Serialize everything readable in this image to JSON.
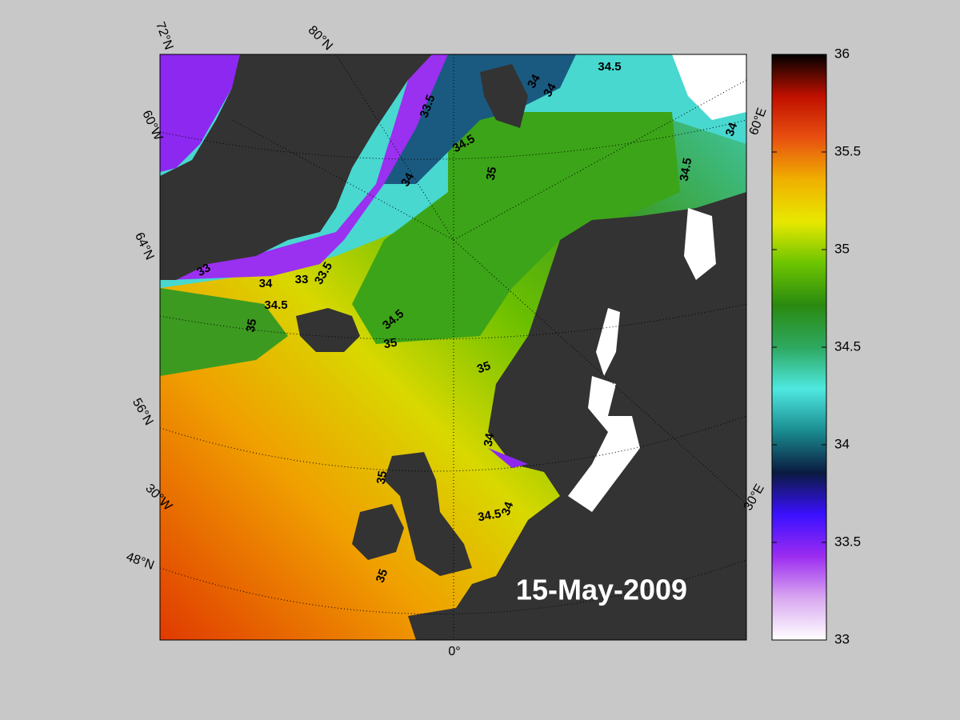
{
  "map": {
    "date_label": "15-May-2009",
    "graticule_labels": [
      "72°N",
      "80°N",
      "60°W",
      "64°N",
      "56°N",
      "30°W",
      "48°N",
      "0°",
      "30°E",
      "60°E"
    ],
    "contour_labels": [
      33.5,
      34,
      34,
      34.5,
      34.5,
      35,
      34,
      34.5,
      34,
      33,
      34,
      33,
      33.5,
      34.5,
      35,
      34.5,
      35,
      35,
      34,
      35,
      34.5,
      34,
      35
    ],
    "colorbar": {
      "lim": [
        33,
        36
      ],
      "ticks": [
        33,
        33.5,
        34,
        34.5,
        35,
        35.5,
        36
      ],
      "colors": [
        "#ffffff",
        "#d9a8f0",
        "#9c2cf0",
        "#3a10ff",
        "#0a1a40",
        "#1a8c90",
        "#4ee8e0",
        "#2ea860",
        "#2a8a10",
        "#6cc400",
        "#e8e800",
        "#f0b000",
        "#e85010",
        "#c01000",
        "#000000"
      ]
    }
  }
}
